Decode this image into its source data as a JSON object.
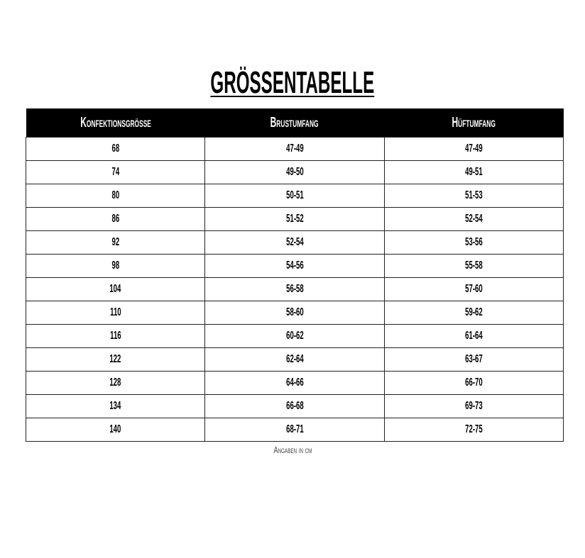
{
  "title": "GRÖSSENTABELLE",
  "headers": [
    "Konfektionsgröße",
    "Brustumfang",
    "Hüftumfang"
  ],
  "rows": [
    [
      "68",
      "47-49",
      "47-49"
    ],
    [
      "74",
      "49-50",
      "49-51"
    ],
    [
      "80",
      "50-51",
      "51-53"
    ],
    [
      "86",
      "51-52",
      "52-54"
    ],
    [
      "92",
      "52-54",
      "53-56"
    ],
    [
      "98",
      "54-56",
      "55-58"
    ],
    [
      "104",
      "56-58",
      "57-60"
    ],
    [
      "110",
      "58-60",
      "59-62"
    ],
    [
      "116",
      "60-62",
      "61-64"
    ],
    [
      "122",
      "62-64",
      "63-67"
    ],
    [
      "128",
      "64-66",
      "66-70"
    ],
    [
      "134",
      "66-68",
      "69-73"
    ],
    [
      "140",
      "68-71",
      "72-75"
    ]
  ],
  "note": "Angaben in cm"
}
